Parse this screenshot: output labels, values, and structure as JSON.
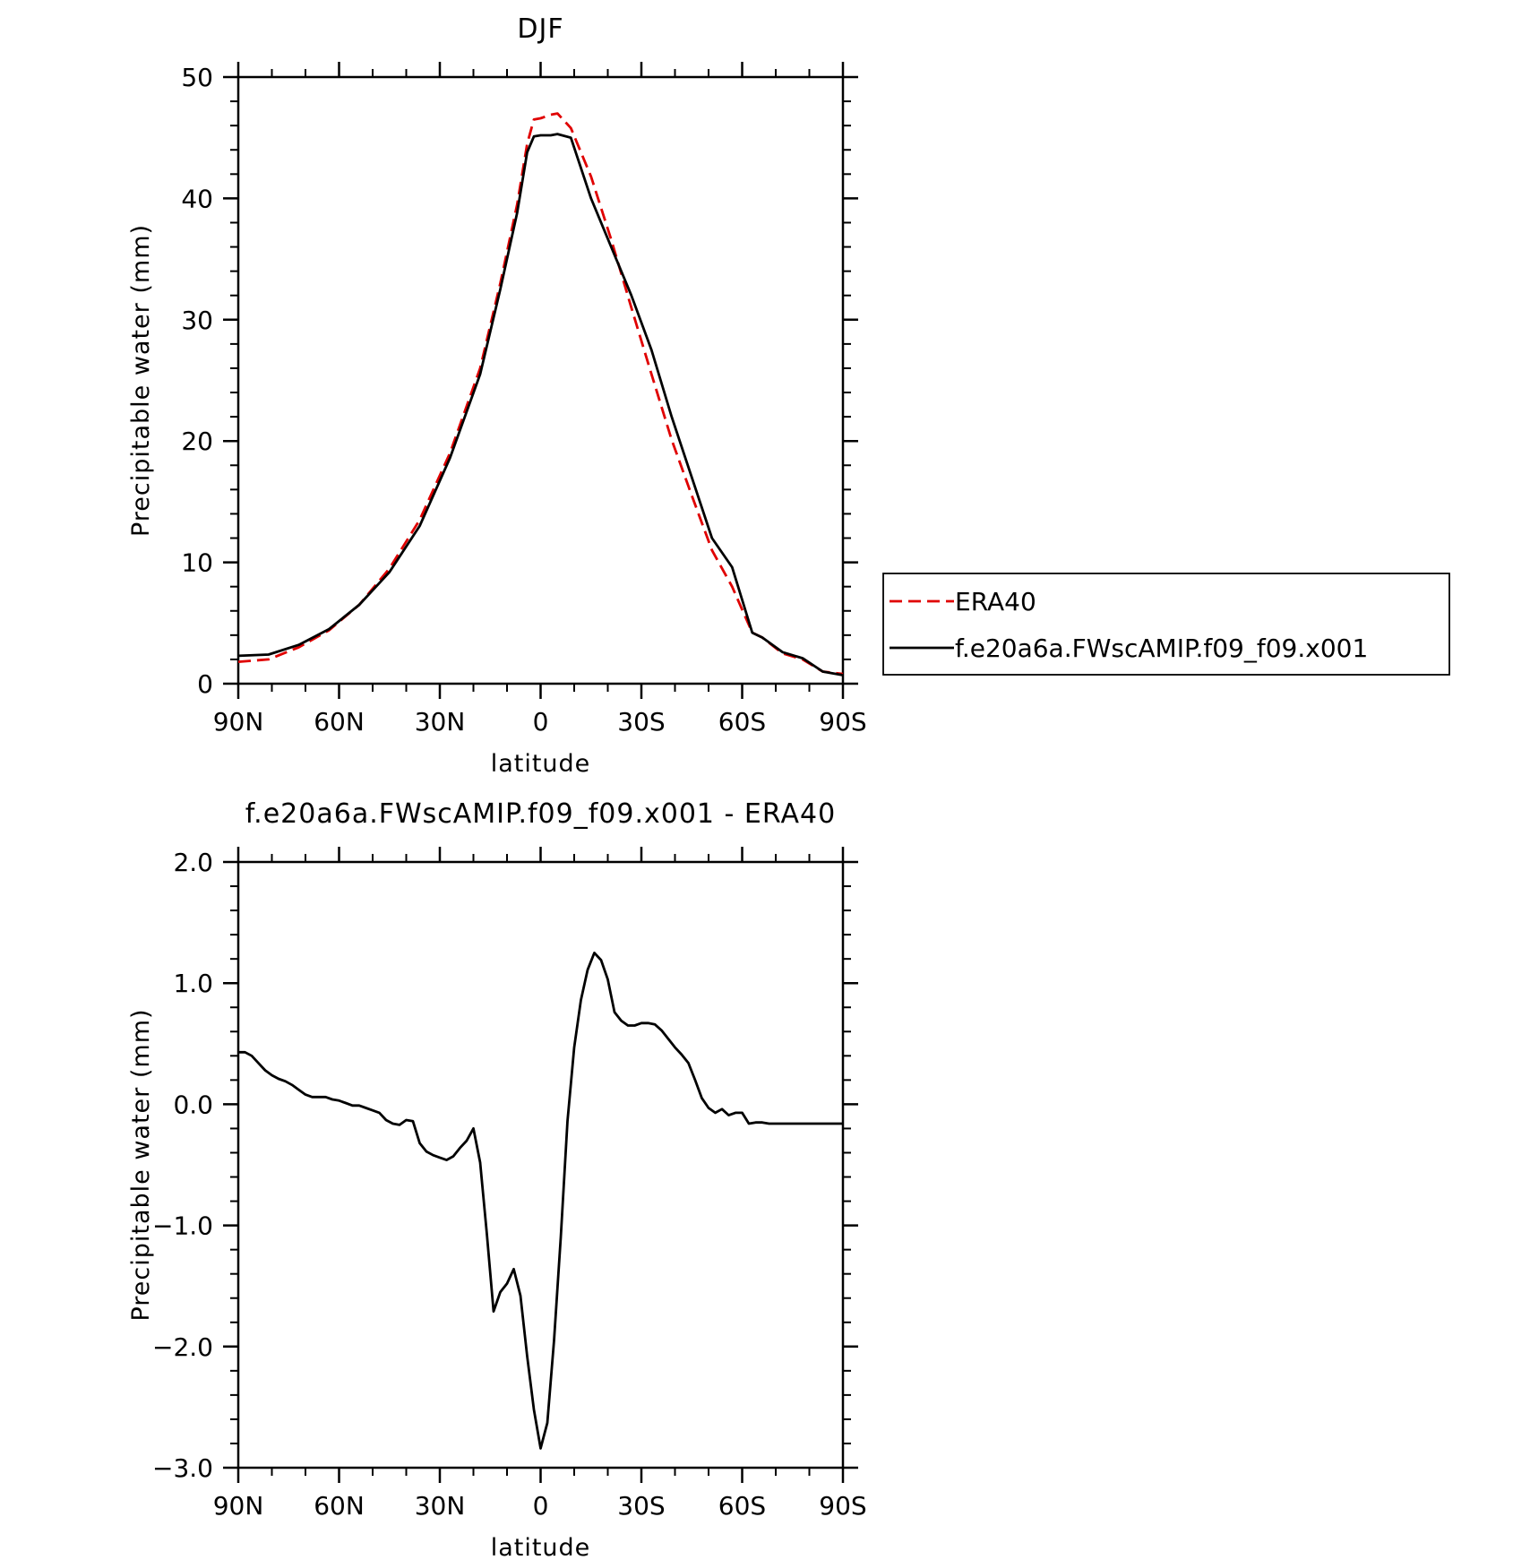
{
  "chart_data": [
    {
      "type": "line",
      "title": "DJF",
      "xlabel": "latitude",
      "ylabel": "Precipitable water (mm)",
      "xlim": [
        90,
        -90
      ],
      "ylim": [
        0,
        50
      ],
      "x_ticks": [
        {
          "value": 90,
          "label": "90N"
        },
        {
          "value": 60,
          "label": "60N"
        },
        {
          "value": 30,
          "label": "30N"
        },
        {
          "value": 0,
          "label": "0"
        },
        {
          "value": -30,
          "label": "30S"
        },
        {
          "value": -60,
          "label": "60S"
        },
        {
          "value": -90,
          "label": "90S"
        }
      ],
      "y_ticks": [
        {
          "value": 0,
          "label": "0"
        },
        {
          "value": 10,
          "label": "10"
        },
        {
          "value": 20,
          "label": "20"
        },
        {
          "value": 30,
          "label": "30"
        },
        {
          "value": 40,
          "label": "40"
        },
        {
          "value": 50,
          "label": "50"
        }
      ],
      "legend_position": "right",
      "x": [
        90,
        81,
        72,
        63,
        54,
        45,
        36,
        27,
        18,
        12,
        7,
        4,
        2,
        0,
        -3,
        -5,
        -9,
        -15,
        -21,
        -27,
        -33,
        -39,
        -45,
        -51,
        -57,
        -63,
        -66,
        -72,
        -78,
        -84,
        -90
      ],
      "series": [
        {
          "name": "ERA40",
          "color": "#e00000",
          "dash": "dashed",
          "values": [
            1.8,
            2.0,
            3.0,
            4.4,
            6.5,
            9.5,
            13.5,
            19.0,
            26.0,
            33.0,
            39.5,
            44.5,
            46.5,
            46.6,
            46.9,
            47.0,
            45.8,
            41.8,
            36.6,
            31.0,
            25.5,
            20.1,
            15.5,
            11.0,
            8.0,
            4.2,
            3.8,
            2.5,
            2.0,
            1.0,
            0.8
          ]
        },
        {
          "name": "f.e20a6a.FWscAMIP.f09_f09.x001",
          "color": "#000000",
          "dash": "solid",
          "values": [
            2.3,
            2.4,
            3.2,
            4.5,
            6.5,
            9.2,
            13.0,
            18.6,
            25.5,
            32.5,
            38.8,
            43.8,
            45.1,
            45.2,
            45.2,
            45.3,
            45.0,
            40.0,
            36.0,
            32.0,
            27.5,
            22.0,
            17.0,
            12.0,
            9.6,
            4.2,
            3.8,
            2.6,
            2.1,
            1.0,
            0.7
          ]
        }
      ]
    },
    {
      "type": "line",
      "title": "f.e20a6a.FWscAMIP.f09_f09.x001 - ERA40",
      "xlabel": "latitude",
      "ylabel": "Precipitable water (mm)",
      "xlim": [
        90,
        -90
      ],
      "ylim": [
        -3.0,
        2.0
      ],
      "x_ticks": [
        {
          "value": 90,
          "label": "90N"
        },
        {
          "value": 60,
          "label": "60N"
        },
        {
          "value": 30,
          "label": "30N"
        },
        {
          "value": 0,
          "label": "0"
        },
        {
          "value": -30,
          "label": "30S"
        },
        {
          "value": -60,
          "label": "60S"
        },
        {
          "value": -90,
          "label": "90S"
        }
      ],
      "y_ticks": [
        {
          "value": -3.0,
          "label": "−3.0"
        },
        {
          "value": -2.0,
          "label": "−2.0"
        },
        {
          "value": -1.0,
          "label": "−1.0"
        },
        {
          "value": 0.0,
          "label": "0.0"
        },
        {
          "value": 1.0,
          "label": "1.0"
        },
        {
          "value": 2.0,
          "label": "2.0"
        }
      ],
      "x": [
        90,
        88,
        86,
        84,
        82,
        80,
        78,
        76,
        74,
        72,
        70,
        68,
        66,
        64,
        62,
        60,
        58,
        56,
        54,
        52,
        50,
        48,
        46,
        44,
        42,
        40,
        38,
        36,
        34,
        32,
        30,
        28,
        26,
        24,
        22,
        20,
        18,
        16,
        14,
        12,
        10,
        8,
        6,
        4,
        2,
        0,
        -2,
        -4,
        -6,
        -8,
        -10,
        -12,
        -14,
        -16,
        -18,
        -20,
        -22,
        -24,
        -26,
        -28,
        -30,
        -32,
        -34,
        -36,
        -38,
        -40,
        -42,
        -44,
        -46,
        -48,
        -50,
        -52,
        -54,
        -56,
        -58,
        -60,
        -62,
        -64,
        -66,
        -68,
        -70,
        -72,
        -74,
        -76,
        -78,
        -80,
        -82,
        -84,
        -86,
        -88,
        -90
      ],
      "series": [
        {
          "name": "",
          "color": "#000000",
          "dash": "solid",
          "values": [
            0.43,
            0.43,
            0.4,
            0.34,
            0.28,
            0.24,
            0.21,
            0.19,
            0.16,
            0.12,
            0.08,
            0.06,
            0.06,
            0.06,
            0.04,
            0.03,
            0.01,
            -0.01,
            -0.01,
            -0.03,
            -0.05,
            -0.07,
            -0.13,
            -0.16,
            -0.17,
            -0.13,
            -0.14,
            -0.32,
            -0.39,
            -0.42,
            -0.44,
            -0.46,
            -0.43,
            -0.36,
            -0.3,
            -0.2,
            -0.48,
            -1.07,
            -1.71,
            -1.55,
            -1.48,
            -1.36,
            -1.58,
            -2.08,
            -2.52,
            -2.84,
            -2.63,
            -1.95,
            -1.1,
            -0.14,
            0.47,
            0.86,
            1.11,
            1.25,
            1.19,
            1.03,
            0.76,
            0.69,
            0.65,
            0.65,
            0.67,
            0.67,
            0.66,
            0.61,
            0.54,
            0.47,
            0.41,
            0.34,
            0.2,
            0.05,
            -0.03,
            -0.07,
            -0.04,
            -0.09,
            -0.07,
            -0.07,
            -0.16,
            -0.15,
            -0.15,
            -0.16,
            -0.16,
            -0.16,
            -0.16,
            -0.16,
            -0.16,
            -0.16,
            -0.16,
            -0.16,
            -0.16,
            -0.16,
            -0.16
          ]
        }
      ]
    }
  ]
}
